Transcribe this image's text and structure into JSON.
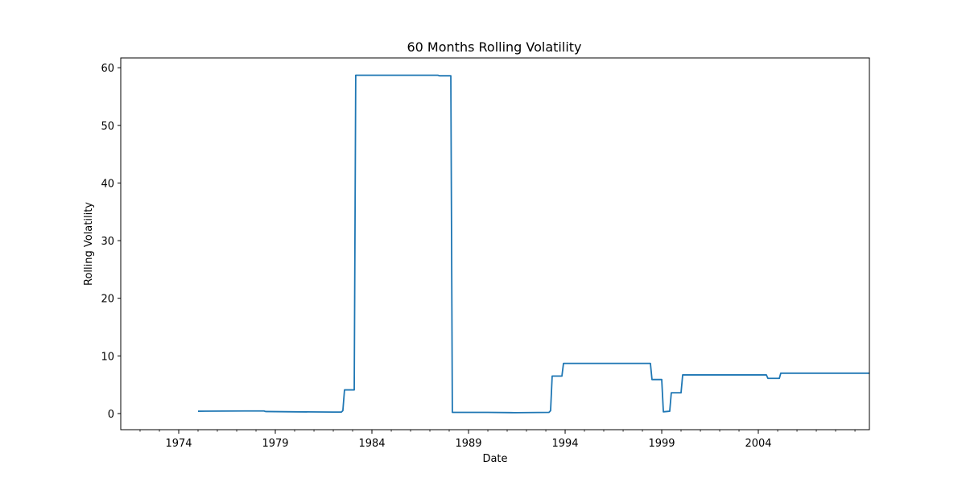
{
  "chart_data": {
    "type": "line",
    "title": "60 Months Rolling Volatility",
    "xlabel": "Date",
    "ylabel": "Rolling Volatility",
    "xlim": [
      "1971-01-01",
      "2009-10-01"
    ],
    "ylim": [
      -2.8,
      61.7
    ],
    "x_ticks": [
      {
        "date": "1974-01-01",
        "label": "1974"
      },
      {
        "date": "1979-01-01",
        "label": "1979"
      },
      {
        "date": "1984-01-01",
        "label": "1984"
      },
      {
        "date": "1989-01-01",
        "label": "1989"
      },
      {
        "date": "1994-01-01",
        "label": "1994"
      },
      {
        "date": "1999-01-01",
        "label": "1999"
      },
      {
        "date": "2004-01-01",
        "label": "2004"
      }
    ],
    "y_ticks": [
      0,
      10,
      20,
      30,
      40,
      50,
      60
    ],
    "grid": false,
    "color": "#1f77b4",
    "series": [
      {
        "x": [
          "1975-01-01",
          "1977-06-01",
          "1978-06-01",
          "1978-07-01",
          "1980-01-01",
          "1982-01-01",
          "1982-06-01",
          "1982-07-01",
          "1982-08-01",
          "1982-09-01",
          "1983-02-01",
          "1983-03-01",
          "1986-01-01",
          "1987-06-01",
          "1987-07-01",
          "1988-02-01",
          "1988-03-01",
          "1990-01-01",
          "1991-06-01",
          "1993-03-01",
          "1993-04-01",
          "1993-05-01",
          "1993-06-01",
          "1993-11-01",
          "1993-12-01",
          "1998-06-01",
          "1998-07-01",
          "1999-01-01",
          "1999-02-01",
          "1999-06-01",
          "1999-07-01",
          "2000-01-01",
          "2000-02-01",
          "2004-06-01",
          "2004-07-01",
          "2005-02-01",
          "2005-03-01",
          "2009-10-01"
        ],
        "y": [
          0.4,
          0.45,
          0.45,
          0.35,
          0.3,
          0.25,
          0.25,
          0.5,
          4.1,
          4.1,
          4.1,
          58.7,
          58.7,
          58.7,
          58.6,
          58.6,
          0.2,
          0.2,
          0.15,
          0.2,
          0.5,
          6.5,
          6.5,
          6.5,
          8.7,
          8.7,
          5.9,
          5.9,
          0.3,
          0.4,
          3.6,
          3.6,
          6.7,
          6.7,
          6.1,
          6.1,
          7.0,
          7.0
        ]
      }
    ]
  }
}
